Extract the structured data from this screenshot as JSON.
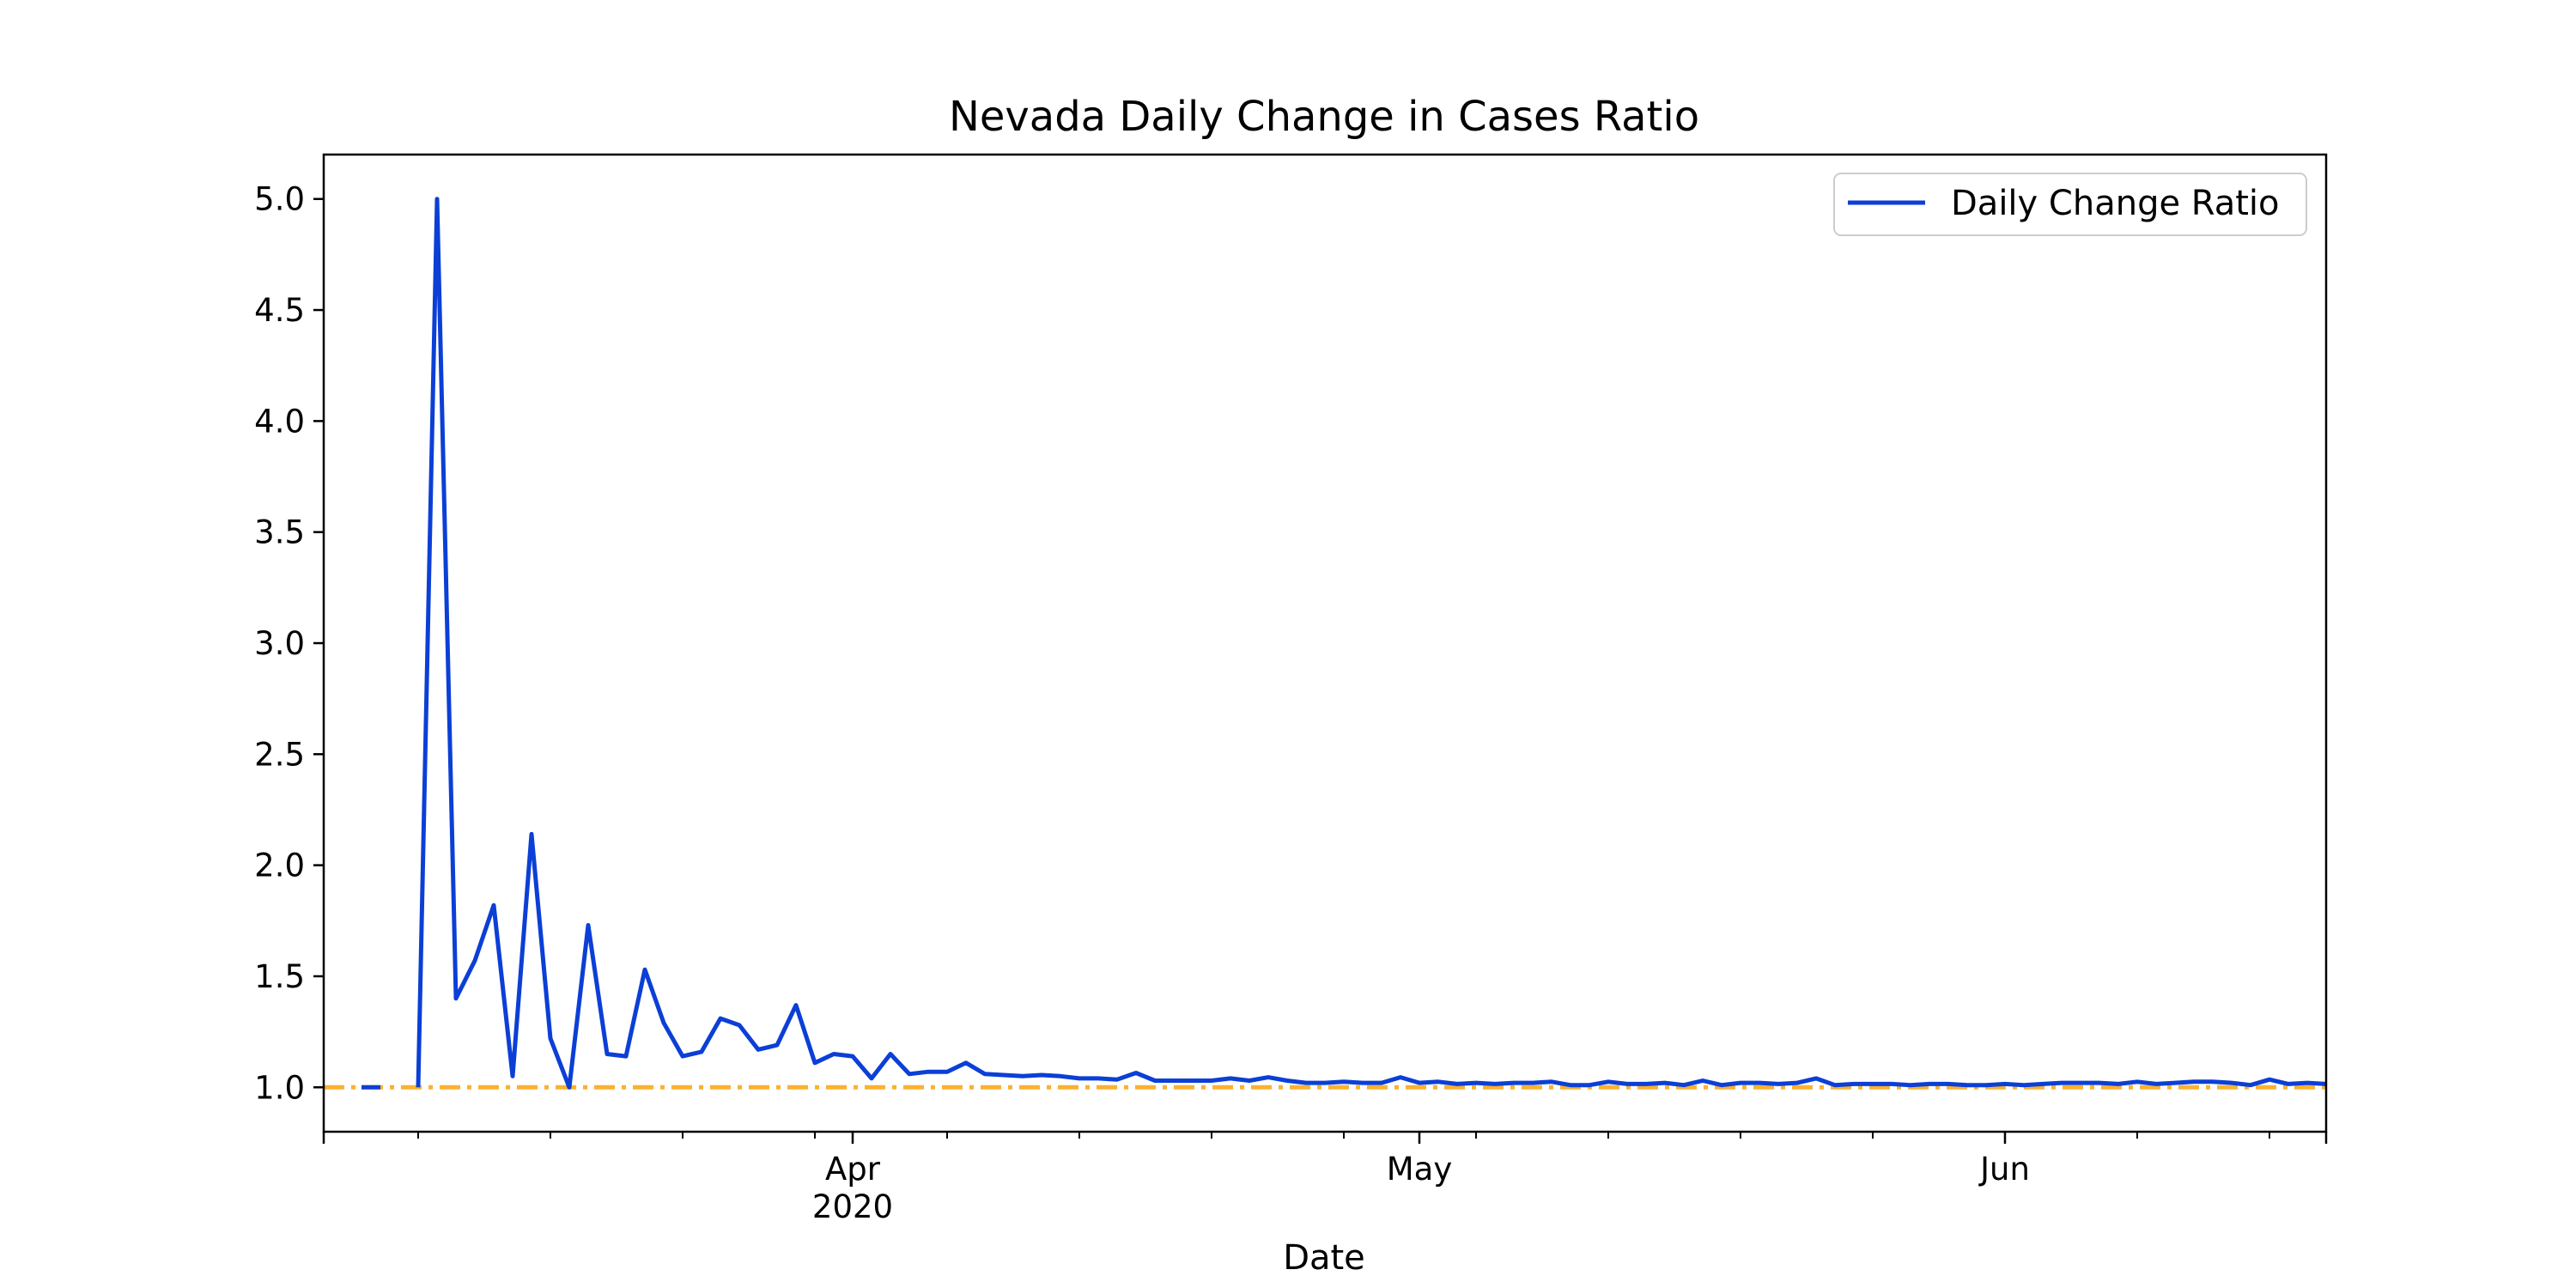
{
  "chart_data": {
    "type": "line",
    "title": "Nevada Daily Change in Cases Ratio",
    "xlabel": "Date",
    "ylabel": "",
    "x_start": "2020-03-04",
    "x_end": "2020-06-18",
    "ylim": [
      0.8,
      5.2
    ],
    "y_ticks": [
      "1.0",
      "1.5",
      "2.0",
      "2.5",
      "3.0",
      "3.5",
      "4.0",
      "4.5",
      "5.0"
    ],
    "x_major_ticks": [
      {
        "date": "2020-04-01",
        "label": "Apr",
        "sublabel": "2020"
      },
      {
        "date": "2020-05-01",
        "label": "May",
        "sublabel": ""
      },
      {
        "date": "2020-06-01",
        "label": "Jun",
        "sublabel": ""
      }
    ],
    "x_minor_ticks": [
      "2020-03-09",
      "2020-03-16",
      "2020-03-23",
      "2020-03-30",
      "2020-04-06",
      "2020-04-13",
      "2020-04-20",
      "2020-04-27",
      "2020-05-04",
      "2020-05-11",
      "2020-05-18",
      "2020-05-25",
      "2020-06-08",
      "2020-06-15"
    ],
    "legend": {
      "position": "upper right",
      "entries": [
        "Daily Change Ratio"
      ]
    },
    "series": [
      {
        "name": "Daily Change Ratio",
        "color": "#0b3fd6",
        "dates": [
          "2020-03-06",
          "2020-03-07",
          "2020-03-09",
          "2020-03-10",
          "2020-03-11",
          "2020-03-12",
          "2020-03-13",
          "2020-03-14",
          "2020-03-15",
          "2020-03-16",
          "2020-03-17",
          "2020-03-18",
          "2020-03-19",
          "2020-03-20",
          "2020-03-21",
          "2020-03-22",
          "2020-03-23",
          "2020-03-24",
          "2020-03-25",
          "2020-03-26",
          "2020-03-27",
          "2020-03-28",
          "2020-03-29",
          "2020-03-30",
          "2020-03-31",
          "2020-04-01",
          "2020-04-02",
          "2020-04-03",
          "2020-04-04",
          "2020-04-05",
          "2020-04-06",
          "2020-04-07",
          "2020-04-08",
          "2020-04-09",
          "2020-04-10",
          "2020-04-11",
          "2020-04-12",
          "2020-04-13",
          "2020-04-14",
          "2020-04-15",
          "2020-04-16",
          "2020-04-17",
          "2020-04-18",
          "2020-04-19",
          "2020-04-20",
          "2020-04-21",
          "2020-04-22",
          "2020-04-23",
          "2020-04-24",
          "2020-04-25",
          "2020-04-26",
          "2020-04-27",
          "2020-04-28",
          "2020-04-29",
          "2020-04-30",
          "2020-05-01",
          "2020-05-02",
          "2020-05-03",
          "2020-05-04",
          "2020-05-05",
          "2020-05-06",
          "2020-05-07",
          "2020-05-08",
          "2020-05-09",
          "2020-05-10",
          "2020-05-11",
          "2020-05-12",
          "2020-05-13",
          "2020-05-14",
          "2020-05-15",
          "2020-05-16",
          "2020-05-17",
          "2020-05-18",
          "2020-05-19",
          "2020-05-20",
          "2020-05-21",
          "2020-05-22",
          "2020-05-23",
          "2020-05-24",
          "2020-05-25",
          "2020-05-26",
          "2020-05-27",
          "2020-05-28",
          "2020-05-29",
          "2020-05-30",
          "2020-05-31",
          "2020-06-01",
          "2020-06-02",
          "2020-06-03",
          "2020-06-04",
          "2020-06-05",
          "2020-06-06",
          "2020-06-07",
          "2020-06-08",
          "2020-06-09",
          "2020-06-10",
          "2020-06-11",
          "2020-06-12",
          "2020-06-13",
          "2020-06-14",
          "2020-06-15",
          "2020-06-16",
          "2020-06-17",
          "2020-06-18"
        ],
        "values": [
          1.0,
          1.0,
          1.0,
          5.0,
          1.4,
          1.57,
          1.82,
          1.05,
          2.14,
          1.22,
          1.0,
          1.73,
          1.15,
          1.14,
          1.53,
          1.29,
          1.14,
          1.16,
          1.31,
          1.28,
          1.17,
          1.19,
          1.37,
          1.11,
          1.15,
          1.14,
          1.04,
          1.15,
          1.06,
          1.07,
          1.07,
          1.11,
          1.06,
          1.055,
          1.05,
          1.055,
          1.05,
          1.04,
          1.04,
          1.035,
          1.065,
          1.03,
          1.03,
          1.03,
          1.03,
          1.04,
          1.03,
          1.045,
          1.03,
          1.02,
          1.02,
          1.025,
          1.02,
          1.02,
          1.045,
          1.02,
          1.025,
          1.015,
          1.02,
          1.015,
          1.02,
          1.02,
          1.025,
          1.01,
          1.01,
          1.025,
          1.015,
          1.015,
          1.02,
          1.01,
          1.03,
          1.01,
          1.02,
          1.02,
          1.015,
          1.02,
          1.04,
          1.01,
          1.015,
          1.015,
          1.015,
          1.01,
          1.015,
          1.015,
          1.01,
          1.01,
          1.015,
          1.01,
          1.015,
          1.02,
          1.02,
          1.02,
          1.015,
          1.025,
          1.015,
          1.02,
          1.025,
          1.025,
          1.02,
          1.01,
          1.035,
          1.015,
          1.02,
          1.015
        ]
      }
    ],
    "reference_line": {
      "y": 1.0,
      "color": "#fbb130",
      "style": "dashdot"
    }
  }
}
